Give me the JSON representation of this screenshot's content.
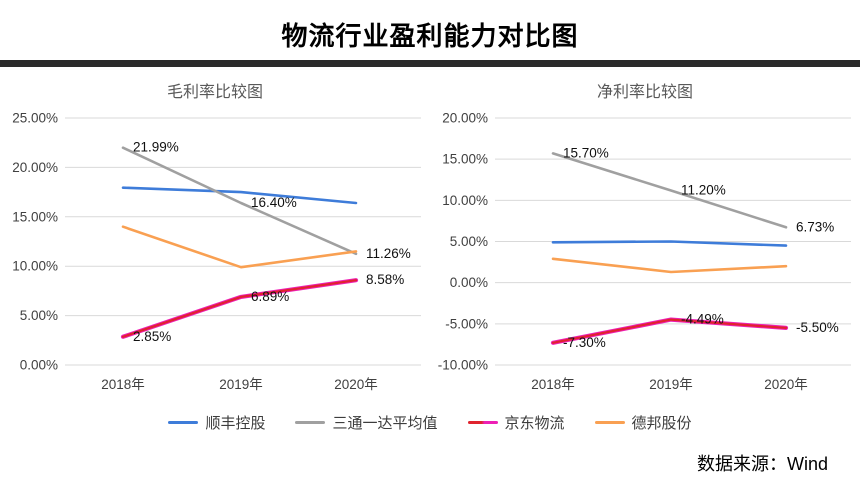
{
  "page": {
    "title": "物流行业盈利能力对比图",
    "source_note": "数据来源：Wind"
  },
  "colors": {
    "grid": "#d9d9d9",
    "axis_text": "#404040",
    "data_label_text": "#111111",
    "divider": "#2b2b2b"
  },
  "legend": [
    {
      "name": "顺丰控股",
      "color": "#3e7cd9"
    },
    {
      "name": "三通一达平均值",
      "color": "#a0a0a0"
    },
    {
      "name": "京东物流",
      "color": "#e0232e",
      "color2": "#ed1fb5"
    },
    {
      "name": "德邦股份",
      "color": "#f9a052"
    }
  ],
  "chart_data": [
    {
      "type": "line",
      "title": "毛利率比较图",
      "categories": [
        "2018年",
        "2019年",
        "2020年"
      ],
      "ylim": [
        0,
        25
      ],
      "ytick_step": 5,
      "ytick_labels": [
        "25.00%",
        "20.00%",
        "15.00%",
        "10.00%",
        "5.00%",
        "0.00%"
      ],
      "grid": true,
      "legend_position": "shared-bottom",
      "series": [
        {
          "name": "顺丰控股",
          "values": [
            17.95,
            17.5,
            16.4
          ],
          "labels": [
            null,
            null,
            null
          ]
        },
        {
          "name": "三通一达平均值",
          "values": [
            21.99,
            16.4,
            11.26
          ],
          "labels": [
            "21.99%",
            "16.40%",
            "11.26%"
          ]
        },
        {
          "name": "京东物流",
          "values": [
            2.85,
            6.89,
            8.58
          ],
          "labels": [
            "2.85%",
            "6.89%",
            "8.58%"
          ]
        },
        {
          "name": "德邦股份",
          "values": [
            14.0,
            9.9,
            11.5
          ],
          "labels": [
            null,
            null,
            null
          ]
        }
      ]
    },
    {
      "type": "line",
      "title": "净利率比较图",
      "categories": [
        "2018年",
        "2019年",
        "2020年"
      ],
      "ylim": [
        -10,
        20
      ],
      "ytick_step": 5,
      "ytick_labels": [
        "20.00%",
        "15.00%",
        "10.00%",
        "5.00%",
        "0.00%",
        "-5.00%",
        "-10.00%"
      ],
      "grid": true,
      "legend_position": "shared-bottom",
      "series": [
        {
          "name": "顺丰控股",
          "values": [
            4.9,
            5.0,
            4.5
          ],
          "labels": [
            null,
            null,
            null
          ]
        },
        {
          "name": "三通一达平均值",
          "values": [
            15.7,
            11.2,
            6.73
          ],
          "labels": [
            "15.70%",
            "11.20%",
            "6.73%"
          ]
        },
        {
          "name": "京东物流",
          "values": [
            -7.3,
            -4.49,
            -5.5
          ],
          "labels": [
            "-7.30%",
            "-4.49%",
            "-5.50%"
          ]
        },
        {
          "name": "德邦股份",
          "values": [
            2.9,
            1.3,
            2.0
          ],
          "labels": [
            null,
            null,
            null
          ]
        }
      ]
    }
  ]
}
